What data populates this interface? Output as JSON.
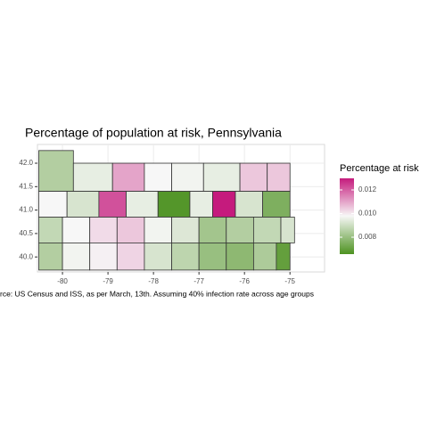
{
  "chart_data": {
    "type": "choropleth",
    "title": "Percentage of population at risk, Pennsylvania",
    "caption": "rce: US Census and ISS, as per March, 13th. Assuming 40% infection rate across age groups",
    "legend_title": "Percentage at risk",
    "xlim": [
      -80.55,
      -74.24
    ],
    "ylim": [
      39.68,
      42.4
    ],
    "xticks": [
      -80,
      -79,
      -78,
      -77,
      -76,
      -75
    ],
    "yticks": [
      {
        "value": 40,
        "label": "40.0"
      },
      {
        "value": 40.5,
        "label": "40.5"
      },
      {
        "value": 41,
        "label": "41.0"
      },
      {
        "value": 41.5,
        "label": "41.5"
      },
      {
        "value": 42,
        "label": "42.0"
      }
    ],
    "grid": true,
    "color_range": [
      0.00657,
      0.01298
    ],
    "color_stops": [
      0.00657,
      0.0098,
      0.01298
    ],
    "colors": [
      "#4d9221",
      "#f7f7f7",
      "#c51b7d"
    ],
    "legend_ticks": [
      {
        "value": 0.008,
        "label": "0.008"
      },
      {
        "value": 0.01,
        "label": "0.010"
      },
      {
        "value": 0.012,
        "label": "0.012"
      }
    ],
    "regions": [
      {
        "lon": [
          -80.52,
          -79.76
        ],
        "lat": [
          41.4,
          42.27
        ],
        "value": 0.0085
      },
      {
        "lon": [
          -79.76,
          -78.9
        ],
        "lat": [
          41.4,
          42.0
        ],
        "value": 0.0095
      },
      {
        "lon": [
          -78.9,
          -78.2
        ],
        "lat": [
          41.4,
          42.0
        ],
        "value": 0.011
      },
      {
        "lon": [
          -78.2,
          -77.6
        ],
        "lat": [
          41.4,
          42.0
        ],
        "value": 0.0098
      },
      {
        "lon": [
          -77.6,
          -76.9
        ],
        "lat": [
          41.4,
          42.0
        ],
        "value": 0.0097
      },
      {
        "lon": [
          -76.9,
          -76.1
        ],
        "lat": [
          41.4,
          42.0
        ],
        "value": 0.0095
      },
      {
        "lon": [
          -76.1,
          -75.5
        ],
        "lat": [
          41.4,
          42.0
        ],
        "value": 0.0105
      },
      {
        "lon": [
          -75.5,
          -75.0
        ],
        "lat": [
          41.4,
          42.0
        ],
        "value": 0.0105
      },
      {
        "lon": [
          -80.52,
          -79.9
        ],
        "lat": [
          40.85,
          41.4
        ],
        "value": 0.0098
      },
      {
        "lon": [
          -79.9,
          -79.2
        ],
        "lat": [
          40.85,
          41.4
        ],
        "value": 0.0092
      },
      {
        "lon": [
          -79.2,
          -78.6
        ],
        "lat": [
          40.85,
          41.4
        ],
        "value": 0.0122
      },
      {
        "lon": [
          -78.6,
          -77.9
        ],
        "lat": [
          40.85,
          41.4
        ],
        "value": 0.0095
      },
      {
        "lon": [
          -77.9,
          -77.2
        ],
        "lat": [
          40.85,
          41.4
        ],
        "value": 0.0067
      },
      {
        "lon": [
          -77.2,
          -76.7
        ],
        "lat": [
          40.85,
          41.4
        ],
        "value": 0.0095
      },
      {
        "lon": [
          -76.7,
          -76.2
        ],
        "lat": [
          40.85,
          41.4
        ],
        "value": 0.0135
      },
      {
        "lon": [
          -76.2,
          -75.6
        ],
        "lat": [
          40.85,
          41.4
        ],
        "value": 0.0092
      },
      {
        "lon": [
          -75.6,
          -75.0
        ],
        "lat": [
          40.85,
          41.4
        ],
        "value": 0.0075
      },
      {
        "lon": [
          -80.52,
          -80.0
        ],
        "lat": [
          40.3,
          40.85
        ],
        "value": 0.0088
      },
      {
        "lon": [
          -80.0,
          -79.4
        ],
        "lat": [
          40.3,
          40.85
        ],
        "value": 0.0098
      },
      {
        "lon": [
          -79.4,
          -78.8
        ],
        "lat": [
          40.3,
          40.85
        ],
        "value": 0.0102
      },
      {
        "lon": [
          -78.8,
          -78.2
        ],
        "lat": [
          40.3,
          40.85
        ],
        "value": 0.0105
      },
      {
        "lon": [
          -78.2,
          -77.6
        ],
        "lat": [
          40.3,
          40.85
        ],
        "value": 0.0097
      },
      {
        "lon": [
          -77.6,
          -77.0
        ],
        "lat": [
          40.3,
          40.85
        ],
        "value": 0.0093
      },
      {
        "lon": [
          -77.0,
          -76.4
        ],
        "lat": [
          40.3,
          40.85
        ],
        "value": 0.0082
      },
      {
        "lon": [
          -76.4,
          -75.8
        ],
        "lat": [
          40.3,
          40.85
        ],
        "value": 0.0085
      },
      {
        "lon": [
          -75.8,
          -75.2
        ],
        "lat": [
          40.3,
          40.85
        ],
        "value": 0.0088
      },
      {
        "lon": [
          -75.2,
          -74.9
        ],
        "lat": [
          40.3,
          40.85
        ],
        "value": 0.0092
      },
      {
        "lon": [
          -80.52,
          -80.0
        ],
        "lat": [
          39.72,
          40.3
        ],
        "value": 0.0085
      },
      {
        "lon": [
          -80.0,
          -79.4
        ],
        "lat": [
          39.72,
          40.3
        ],
        "value": 0.0097
      },
      {
        "lon": [
          -79.4,
          -78.8
        ],
        "lat": [
          39.72,
          40.3
        ],
        "value": 0.0099
      },
      {
        "lon": [
          -78.8,
          -78.2
        ],
        "lat": [
          39.72,
          40.3
        ],
        "value": 0.0103
      },
      {
        "lon": [
          -78.2,
          -77.6
        ],
        "lat": [
          39.72,
          40.3
        ],
        "value": 0.0092
      },
      {
        "lon": [
          -77.6,
          -77.0
        ],
        "lat": [
          39.72,
          40.3
        ],
        "value": 0.0087
      },
      {
        "lon": [
          -77.0,
          -76.4
        ],
        "lat": [
          39.72,
          40.3
        ],
        "value": 0.008
      },
      {
        "lon": [
          -76.4,
          -75.8
        ],
        "lat": [
          39.72,
          40.3
        ],
        "value": 0.0078
      },
      {
        "lon": [
          -75.8,
          -75.3
        ],
        "lat": [
          39.72,
          40.3
        ],
        "value": 0.0084
      },
      {
        "lon": [
          -75.3,
          -75.0
        ],
        "lat": [
          39.72,
          40.3
        ],
        "value": 0.007
      }
    ]
  }
}
